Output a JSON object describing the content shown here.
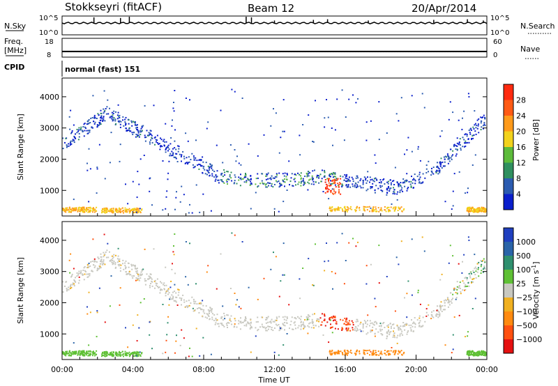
{
  "header": {
    "station": "Stokkseyri (fitACF)",
    "beam": "Beam 12",
    "date": "20/Apr/2014"
  },
  "side_labels": {
    "nsky": "N.Sky",
    "freq_line1": "Freq.",
    "freq_line2": "[MHz]",
    "cpid": "CPID",
    "nsearch": "N.Search",
    "nave": "Nave"
  },
  "cpid_text": "normal (fast) 151",
  "chart_data": [
    {
      "type": "line",
      "name": "noise",
      "left_ticks": [
        "10^5",
        "10^0"
      ],
      "right_ticks": [
        "10^5",
        "10^0"
      ],
      "spikes": [
        {
          "x": 1.8,
          "v": 0.9
        },
        {
          "x": 3.3,
          "v": 0.8
        },
        {
          "x": 3.8,
          "v": 1.0
        },
        {
          "x": 10.4,
          "v": 1.0
        },
        {
          "x": 10.7,
          "v": 0.9
        },
        {
          "x": 12.0,
          "v": 0.4
        },
        {
          "x": 14.2,
          "v": 0.5
        },
        {
          "x": 15.0,
          "v": 0.6
        },
        {
          "x": 17.3,
          "v": 0.4
        },
        {
          "x": 21.0,
          "v": 0.5
        },
        {
          "x": 22.9,
          "v": 0.6
        },
        {
          "x": 23.8,
          "v": 0.4
        }
      ]
    },
    {
      "type": "line",
      "name": "frequency / nave",
      "left_ticks": [
        "18",
        "8"
      ],
      "right_ticks": [
        "60",
        "0"
      ],
      "freq_level": 11,
      "nave_level": 18
    },
    {
      "type": "heatmap",
      "quantity": "power",
      "ylabel": "Slant Range [km]",
      "ylim": [
        180,
        4600
      ],
      "yticks": [
        1000,
        2000,
        3000,
        4000
      ],
      "colorbar_label": "Power [dB]",
      "colorbar_ticks": [
        "28",
        "24",
        "20",
        "16",
        "12",
        "8",
        "4"
      ],
      "colors": [
        "#ff2a0f",
        "#ff5a14",
        "#ff9a1a",
        "#f2d21c",
        "#5dbb3b",
        "#2f8f5f",
        "#2b5bb0",
        "#0a1ecc"
      ]
    },
    {
      "type": "heatmap",
      "quantity": "velocity",
      "ylabel": "Slant Range [km]",
      "xlabel": "Time UT",
      "ylim": [
        180,
        4600
      ],
      "yticks": [
        1000,
        2000,
        3000,
        4000
      ],
      "xlim": [
        0,
        24
      ],
      "xticks": [
        "00:00",
        "04:00",
        "08:00",
        "12:00",
        "16:00",
        "20:00",
        "00:00"
      ],
      "colorbar_label": "Velocity [m s",
      "colorbar_label_sup": "-1",
      "colorbar_ticks": [
        "1000",
        "500",
        "100",
        "25",
        "−25",
        "−100",
        "−500",
        "−1000"
      ],
      "colors": [
        "#1f3fbf",
        "#2a64a8",
        "#2f8f6e",
        "#5fc035",
        "#c8c8c0",
        "#f0b020",
        "#ff8a10",
        "#ff5010",
        "#e51010"
      ]
    }
  ]
}
